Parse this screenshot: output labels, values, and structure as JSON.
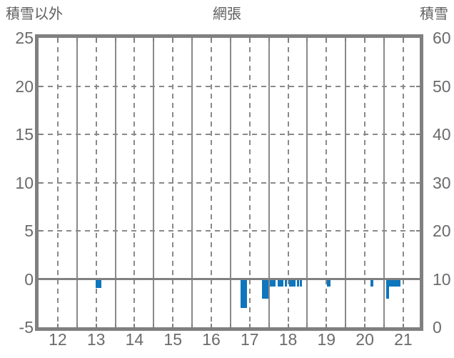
{
  "header": {
    "left_axis_title": "積雪以外",
    "station_title": "網張",
    "right_axis_title": "積雪"
  },
  "chart_data": {
    "type": "bar",
    "title": "網張",
    "left_axis": {
      "label": "積雪以外",
      "range": [
        -5,
        25
      ],
      "tick_values": [
        25,
        20,
        15,
        10,
        5,
        0,
        -5
      ],
      "tick_labels": [
        "25",
        "20",
        "15",
        "10",
        "5",
        "0",
        "-5"
      ]
    },
    "right_axis": {
      "label": "積雪",
      "range": [
        0,
        60
      ],
      "tick_values": [
        60,
        50,
        40,
        30,
        20,
        10,
        0
      ],
      "tick_labels": [
        "60",
        "50",
        "40",
        "30",
        "20",
        "10",
        "0"
      ]
    },
    "x_axis": {
      "unit": "hour",
      "range": [
        11.5,
        21.43
      ],
      "tick_hours": [
        12,
        13,
        14,
        15,
        16,
        17,
        18,
        19,
        20,
        21
      ],
      "tick_labels": [
        "12",
        "13",
        "14",
        "15",
        "16",
        "17",
        "18",
        "19",
        "20",
        "21"
      ],
      "solid_line_hours": [
        12.5,
        13.5,
        14.5,
        15.5,
        16.5,
        17.5,
        18.5,
        19.5,
        20.5
      ]
    },
    "grid": {
      "dashed_horizontal_values": [
        20,
        15,
        10,
        5
      ],
      "zero_line_value": 0,
      "axis_tick_step_hours": 0.5,
      "axis_tick_values_y": [
        20,
        15,
        10,
        5,
        0
      ]
    },
    "bars": [
      {
        "from": 12.98,
        "to": 13.14,
        "value": -0.9
      },
      {
        "from": 16.76,
        "to": 16.93,
        "value": -3.0
      },
      {
        "from": 17.32,
        "to": 17.48,
        "value": -2.0
      },
      {
        "from": 17.52,
        "to": 17.68,
        "value": -0.8
      },
      {
        "from": 17.73,
        "to": 17.88,
        "value": -0.8
      },
      {
        "from": 17.92,
        "to": 17.97,
        "value": -0.8
      },
      {
        "from": 18.03,
        "to": 18.2,
        "value": -0.8
      },
      {
        "from": 18.24,
        "to": 18.29,
        "value": -0.8
      },
      {
        "from": 18.31,
        "to": 18.36,
        "value": -0.8
      },
      {
        "from": 19.01,
        "to": 19.11,
        "value": -0.8
      },
      {
        "from": 20.14,
        "to": 20.23,
        "value": -0.8
      },
      {
        "from": 20.55,
        "to": 20.63,
        "value": -2.0
      },
      {
        "from": 20.63,
        "to": 20.92,
        "value": -0.8
      }
    ],
    "colors": {
      "bar": "#0e76bd",
      "grid": "#8a8a8a",
      "frame": "#808080",
      "zero_line": "#808080",
      "text": "#6b6b6b",
      "title_text": "#5f5f5f",
      "background": "#ffffff"
    },
    "legend": "none"
  }
}
